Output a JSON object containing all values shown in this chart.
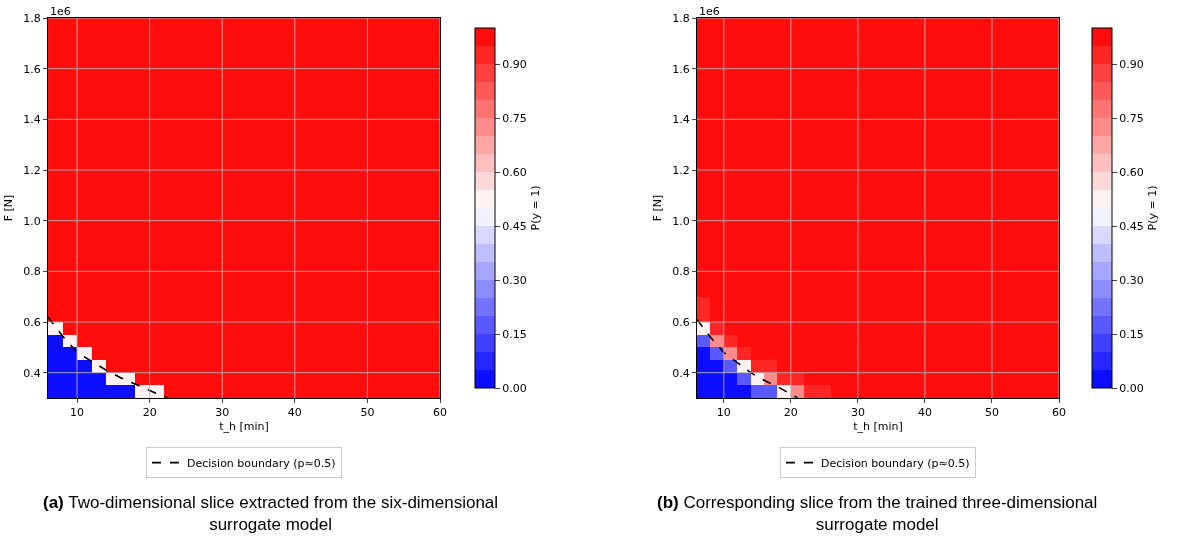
{
  "chart_data": [
    {
      "type": "heatmap",
      "title": "(a) Two-dimensional slice extracted from the six-dimensional surrogate model",
      "xlabel": "t_h [min]",
      "ylabel": "F [N]",
      "clabel": "P(y = 1)",
      "annotations": [
        "1e6"
      ],
      "x": [
        7,
        9,
        11,
        13,
        15,
        17,
        19,
        21,
        23,
        25,
        27,
        29,
        31,
        33,
        35,
        37,
        39,
        41,
        43,
        45,
        47,
        49,
        51,
        53,
        55,
        57,
        59
      ],
      "cells": [
        [
          1,
          1,
          1,
          1,
          1,
          1,
          1,
          1,
          1,
          1,
          1,
          1,
          1,
          1,
          1,
          1,
          1,
          1,
          1,
          1,
          1,
          1,
          1,
          1,
          1,
          1,
          1
        ],
        [
          1,
          1,
          1,
          1,
          1,
          1,
          1,
          1,
          1,
          1,
          1,
          1,
          1,
          1,
          1,
          1,
          1,
          1,
          1,
          1,
          1,
          1,
          1,
          1,
          1,
          1,
          1
        ],
        [
          1,
          1,
          1,
          1,
          1,
          1,
          1,
          1,
          1,
          1,
          1,
          1,
          1,
          1,
          1,
          1,
          1,
          1,
          1,
          1,
          1,
          1,
          1,
          1,
          1,
          1,
          1
        ],
        [
          1,
          1,
          1,
          1,
          1,
          1,
          1,
          1,
          1,
          1,
          1,
          1,
          1,
          1,
          1,
          1,
          1,
          1,
          1,
          1,
          1,
          1,
          1,
          1,
          1,
          1,
          1
        ],
        [
          1,
          1,
          1,
          1,
          1,
          1,
          1,
          1,
          1,
          1,
          1,
          1,
          1,
          1,
          1,
          1,
          1,
          1,
          1,
          1,
          1,
          1,
          1,
          1,
          1,
          1,
          1
        ],
        [
          1,
          1,
          1,
          1,
          1,
          1,
          1,
          1,
          1,
          1,
          1,
          1,
          1,
          1,
          1,
          1,
          1,
          1,
          1,
          1,
          1,
          1,
          1,
          1,
          1,
          1,
          1
        ],
        [
          1,
          1,
          1,
          1,
          1,
          1,
          1,
          1,
          1,
          1,
          1,
          1,
          1,
          1,
          1,
          1,
          1,
          1,
          1,
          1,
          1,
          1,
          1,
          1,
          1,
          1,
          1
        ],
        [
          1,
          1,
          1,
          1,
          1,
          1,
          1,
          1,
          1,
          1,
          1,
          1,
          1,
          1,
          1,
          1,
          1,
          1,
          1,
          1,
          1,
          1,
          1,
          1,
          1,
          1,
          1
        ],
        [
          1,
          1,
          1,
          1,
          1,
          1,
          1,
          1,
          1,
          1,
          1,
          1,
          1,
          1,
          1,
          1,
          1,
          1,
          1,
          1,
          1,
          1,
          1,
          1,
          1,
          1,
          1
        ],
        [
          1,
          1,
          1,
          1,
          1,
          1,
          1,
          1,
          1,
          1,
          1,
          1,
          1,
          1,
          1,
          1,
          1,
          1,
          1,
          1,
          1,
          1,
          1,
          1,
          1,
          1,
          1
        ],
        [
          1,
          1,
          1,
          1,
          1,
          1,
          1,
          1,
          1,
          1,
          1,
          1,
          1,
          1,
          1,
          1,
          1,
          1,
          1,
          1,
          1,
          1,
          1,
          1,
          1,
          1,
          1
        ],
        [
          1,
          1,
          1,
          1,
          1,
          1,
          1,
          1,
          1,
          1,
          1,
          1,
          1,
          1,
          1,
          1,
          1,
          1,
          1,
          1,
          1,
          1,
          1,
          1,
          1,
          1,
          1
        ],
        [
          1,
          1,
          1,
          1,
          1,
          1,
          1,
          1,
          1,
          1,
          1,
          1,
          1,
          1,
          1,
          1,
          1,
          1,
          1,
          1,
          1,
          1,
          1,
          1,
          1,
          1,
          1
        ],
        [
          1,
          1,
          1,
          1,
          1,
          1,
          1,
          1,
          1,
          1,
          1,
          1,
          1,
          1,
          1,
          1,
          1,
          1,
          1,
          1,
          1,
          1,
          1,
          1,
          1,
          1,
          1
        ],
        [
          1,
          1,
          1,
          1,
          1,
          1,
          1,
          1,
          1,
          1,
          1,
          1,
          1,
          1,
          1,
          1,
          1,
          1,
          1,
          1,
          1,
          1,
          1,
          1,
          1,
          1,
          1
        ],
        [
          1,
          1,
          1,
          1,
          1,
          1,
          1,
          1,
          1,
          1,
          1,
          1,
          1,
          1,
          1,
          1,
          1,
          1,
          1,
          1,
          1,
          1,
          1,
          1,
          1,
          1,
          1
        ],
        [
          1,
          1,
          1,
          1,
          1,
          1,
          1,
          1,
          1,
          1,
          1,
          1,
          1,
          1,
          1,
          1,
          1,
          1,
          1,
          1,
          1,
          1,
          1,
          1,
          1,
          1,
          1
        ],
        [
          1,
          1,
          1,
          1,
          1,
          1,
          1,
          1,
          1,
          1,
          1,
          1,
          1,
          1,
          1,
          1,
          1,
          1,
          1,
          1,
          1,
          1,
          1,
          1,
          1,
          1,
          1
        ],
        [
          1,
          1,
          1,
          1,
          1,
          1,
          1,
          1,
          1,
          1,
          1,
          1,
          1,
          1,
          1,
          1,
          1,
          1,
          1,
          1,
          1,
          1,
          1,
          1,
          1,
          1,
          1
        ],
        [
          1,
          1,
          1,
          1,
          1,
          1,
          1,
          1,
          1,
          1,
          1,
          1,
          1,
          1,
          1,
          1,
          1,
          1,
          1,
          1,
          1,
          1,
          1,
          1,
          1,
          1,
          1
        ],
        [
          1,
          1,
          1,
          1,
          1,
          1,
          1,
          1,
          1,
          1,
          1,
          1,
          1,
          1,
          1,
          1,
          1,
          1,
          1,
          1,
          1,
          1,
          1,
          1,
          1,
          1,
          1
        ],
        [
          1,
          1,
          1,
          1,
          1,
          1,
          1,
          1,
          1,
          1,
          1,
          1,
          1,
          1,
          1,
          1,
          1,
          1,
          1,
          1,
          1,
          1,
          1,
          1,
          1,
          1,
          1
        ],
        [
          1,
          1,
          1,
          1,
          1,
          1,
          1,
          1,
          1,
          1,
          1,
          1,
          1,
          1,
          1,
          1,
          1,
          1,
          1,
          1,
          1,
          1,
          1,
          1,
          1,
          1,
          1
        ],
        [
          1,
          1,
          1,
          1,
          1,
          1,
          1,
          1,
          1,
          1,
          1,
          1,
          1,
          1,
          1,
          1,
          1,
          1,
          1,
          1,
          1,
          1,
          1,
          1,
          1,
          1,
          1
        ],
        [
          0.5,
          1,
          1,
          1,
          1,
          1,
          1,
          1,
          1,
          1,
          1,
          1,
          1,
          1,
          1,
          1,
          1,
          1,
          1,
          1,
          1,
          1,
          1,
          1,
          1,
          1,
          1
        ],
        [
          0,
          0.5,
          1,
          1,
          1,
          1,
          1,
          1,
          1,
          1,
          1,
          1,
          1,
          1,
          1,
          1,
          1,
          1,
          1,
          1,
          1,
          1,
          1,
          1,
          1,
          1,
          1
        ],
        [
          0,
          0,
          0.5,
          1,
          1,
          1,
          1,
          1,
          1,
          1,
          1,
          1,
          1,
          1,
          1,
          1,
          1,
          1,
          1,
          1,
          1,
          1,
          1,
          1,
          1,
          1,
          1
        ],
        [
          0,
          0,
          0,
          0.5,
          1,
          1,
          1,
          1,
          1,
          1,
          1,
          1,
          1,
          1,
          1,
          1,
          1,
          1,
          1,
          1,
          1,
          1,
          1,
          1,
          1,
          1,
          1
        ],
        [
          0,
          0,
          0,
          0,
          0.5,
          0.5,
          1,
          1,
          1,
          1,
          1,
          1,
          1,
          1,
          1,
          1,
          1,
          1,
          1,
          1,
          1,
          1,
          1,
          1,
          1,
          1,
          1
        ],
        [
          0,
          0,
          0,
          0,
          0,
          0,
          0.5,
          0.5,
          1,
          1,
          1,
          1,
          1,
          1,
          1,
          1,
          1,
          1,
          1,
          1,
          1,
          1,
          1,
          1,
          1,
          1,
          1
        ]
      ],
      "clim": [
        0,
        1
      ],
      "cticks": [
        {
          "value": 0,
          "label": "0.00"
        },
        {
          "value": 0.15,
          "label": "0.15"
        },
        {
          "value": 0.3,
          "label": "0.30"
        },
        {
          "value": 0.45,
          "label": "0.45"
        },
        {
          "value": 0.6,
          "label": "0.60"
        },
        {
          "value": 0.75,
          "label": "0.75"
        },
        {
          "value": 0.9,
          "label": "0.90"
        }
      ],
      "series": [
        {
          "type": "line",
          "name": "Decision boundary (p≈0.5)",
          "color": "#000000",
          "line_style": "dashed",
          "x": [
            6,
            8,
            10,
            12,
            14,
            16,
            18,
            20,
            22,
            22.5
          ],
          "values": [
            0.62,
            0.545,
            0.48,
            0.445,
            0.41,
            0.38,
            0.355,
            0.33,
            0.305,
            0.3
          ]
        }
      ],
      "xlim": [
        6,
        60
      ],
      "xticks": [
        10,
        20,
        30,
        40,
        50,
        60
      ],
      "ylim": [
        0.3,
        1.8
      ],
      "yticks": [
        0.4,
        0.6,
        0.8,
        {
          "value": 1,
          "label": "1.0"
        },
        1.2,
        1.4,
        1.6,
        1.8
      ],
      "grid": true,
      "legend": "bottom"
    },
    {
      "type": "heatmap",
      "title": "(b) Corresponding slice from the trained three-dimensional surrogate model",
      "xlabel": "t_h [min]",
      "ylabel": "F [N]",
      "clabel": "P(y = 1)",
      "annotations": [
        "1e6"
      ],
      "x": [
        7,
        9,
        11,
        13,
        15,
        17,
        19,
        21,
        23,
        25,
        27,
        29,
        31,
        33,
        35,
        37,
        39,
        41,
        43,
        45,
        47,
        49,
        51,
        53,
        55,
        57,
        59
      ],
      "cells": [
        [
          1,
          1,
          1,
          1,
          1,
          1,
          1,
          1,
          1,
          1,
          1,
          1,
          1,
          1,
          1,
          1,
          1,
          1,
          1,
          1,
          1,
          1,
          1,
          1,
          1,
          1,
          1
        ],
        [
          1,
          1,
          1,
          1,
          1,
          1,
          1,
          1,
          1,
          1,
          1,
          1,
          1,
          1,
          1,
          1,
          1,
          1,
          1,
          1,
          1,
          1,
          1,
          1,
          1,
          1,
          1
        ],
        [
          1,
          1,
          1,
          1,
          1,
          1,
          1,
          1,
          1,
          1,
          1,
          1,
          1,
          1,
          1,
          1,
          1,
          1,
          1,
          1,
          1,
          1,
          1,
          1,
          1,
          1,
          1
        ],
        [
          1,
          1,
          1,
          1,
          1,
          1,
          1,
          1,
          1,
          1,
          1,
          1,
          1,
          1,
          1,
          1,
          1,
          1,
          1,
          1,
          1,
          1,
          1,
          1,
          1,
          1,
          1
        ],
        [
          1,
          1,
          1,
          1,
          1,
          1,
          1,
          1,
          1,
          1,
          1,
          1,
          1,
          1,
          1,
          1,
          1,
          1,
          1,
          1,
          1,
          1,
          1,
          1,
          1,
          1,
          1
        ],
        [
          1,
          1,
          1,
          1,
          1,
          1,
          1,
          1,
          1,
          1,
          1,
          1,
          1,
          1,
          1,
          1,
          1,
          1,
          1,
          1,
          1,
          1,
          1,
          1,
          1,
          1,
          1
        ],
        [
          1,
          1,
          1,
          1,
          1,
          1,
          1,
          1,
          1,
          1,
          1,
          1,
          1,
          1,
          1,
          1,
          1,
          1,
          1,
          1,
          1,
          1,
          1,
          1,
          1,
          1,
          1
        ],
        [
          1,
          1,
          1,
          1,
          1,
          1,
          1,
          1,
          1,
          1,
          1,
          1,
          1,
          1,
          1,
          1,
          1,
          1,
          1,
          1,
          1,
          1,
          1,
          1,
          1,
          1,
          1
        ],
        [
          1,
          1,
          1,
          1,
          1,
          1,
          1,
          1,
          1,
          1,
          1,
          1,
          1,
          1,
          1,
          1,
          1,
          1,
          1,
          1,
          1,
          1,
          1,
          1,
          1,
          1,
          1
        ],
        [
          1,
          1,
          1,
          1,
          1,
          1,
          1,
          1,
          1,
          1,
          1,
          1,
          1,
          1,
          1,
          1,
          1,
          1,
          1,
          1,
          1,
          1,
          1,
          1,
          1,
          1,
          1
        ],
        [
          1,
          1,
          1,
          1,
          1,
          1,
          1,
          1,
          1,
          1,
          1,
          1,
          1,
          1,
          1,
          1,
          1,
          1,
          1,
          1,
          1,
          1,
          1,
          1,
          1,
          1,
          1
        ],
        [
          1,
          1,
          1,
          1,
          1,
          1,
          1,
          1,
          1,
          1,
          1,
          1,
          1,
          1,
          1,
          1,
          1,
          1,
          1,
          1,
          1,
          1,
          1,
          1,
          1,
          1,
          1
        ],
        [
          1,
          1,
          1,
          1,
          1,
          1,
          1,
          1,
          1,
          1,
          1,
          1,
          1,
          1,
          1,
          1,
          1,
          1,
          1,
          1,
          1,
          1,
          1,
          1,
          1,
          1,
          1
        ],
        [
          1,
          1,
          1,
          1,
          1,
          1,
          1,
          1,
          1,
          1,
          1,
          1,
          1,
          1,
          1,
          1,
          1,
          1,
          1,
          1,
          1,
          1,
          1,
          1,
          1,
          1,
          1
        ],
        [
          1,
          1,
          1,
          1,
          1,
          1,
          1,
          1,
          1,
          1,
          1,
          1,
          1,
          1,
          1,
          1,
          1,
          1,
          1,
          1,
          1,
          1,
          1,
          1,
          1,
          1,
          1
        ],
        [
          1,
          1,
          1,
          1,
          1,
          1,
          1,
          1,
          1,
          1,
          1,
          1,
          1,
          1,
          1,
          1,
          1,
          1,
          1,
          1,
          1,
          1,
          1,
          1,
          1,
          1,
          1
        ],
        [
          1,
          1,
          1,
          1,
          1,
          1,
          1,
          1,
          1,
          1,
          1,
          1,
          1,
          1,
          1,
          1,
          1,
          1,
          1,
          1,
          1,
          1,
          1,
          1,
          1,
          1,
          1
        ],
        [
          1,
          1,
          1,
          1,
          1,
          1,
          1,
          1,
          1,
          1,
          1,
          1,
          1,
          1,
          1,
          1,
          1,
          1,
          1,
          1,
          1,
          1,
          1,
          1,
          1,
          1,
          1
        ],
        [
          1,
          1,
          1,
          1,
          1,
          1,
          1,
          1,
          1,
          1,
          1,
          1,
          1,
          1,
          1,
          1,
          1,
          1,
          1,
          1,
          1,
          1,
          1,
          1,
          1,
          1,
          1
        ],
        [
          1,
          1,
          1,
          1,
          1,
          1,
          1,
          1,
          1,
          1,
          1,
          1,
          1,
          1,
          1,
          1,
          1,
          1,
          1,
          1,
          1,
          1,
          1,
          1,
          1,
          1,
          1
        ],
        [
          1,
          1,
          1,
          1,
          1,
          1,
          1,
          1,
          1,
          1,
          1,
          1,
          1,
          1,
          1,
          1,
          1,
          1,
          1,
          1,
          1,
          1,
          1,
          1,
          1,
          1,
          1
        ],
        [
          0.95,
          1,
          1,
          1,
          1,
          1,
          1,
          1,
          1,
          1,
          1,
          1,
          1,
          1,
          1,
          1,
          1,
          1,
          1,
          1,
          1,
          1,
          1,
          1,
          1,
          1,
          1
        ],
        [
          0.9,
          1,
          1,
          1,
          1,
          1,
          1,
          1,
          1,
          1,
          1,
          1,
          1,
          1,
          1,
          1,
          1,
          1,
          1,
          1,
          1,
          1,
          1,
          1,
          1,
          1,
          1
        ],
        [
          0.9,
          1,
          1,
          1,
          1,
          1,
          1,
          1,
          1,
          1,
          1,
          1,
          1,
          1,
          1,
          1,
          1,
          1,
          1,
          1,
          1,
          1,
          1,
          1,
          1,
          1,
          1
        ],
        [
          0.5,
          0.9,
          1,
          1,
          1,
          1,
          1,
          1,
          1,
          1,
          1,
          1,
          1,
          1,
          1,
          1,
          1,
          1,
          1,
          1,
          1,
          1,
          1,
          1,
          1,
          1,
          1
        ],
        [
          0.15,
          0.7,
          0.9,
          1,
          1,
          1,
          1,
          1,
          1,
          1,
          1,
          1,
          1,
          1,
          1,
          1,
          1,
          1,
          1,
          1,
          1,
          1,
          1,
          1,
          1,
          1,
          1
        ],
        [
          0,
          0.15,
          0.7,
          0.9,
          1,
          1,
          1,
          1,
          1,
          1,
          1,
          1,
          1,
          1,
          1,
          1,
          1,
          1,
          1,
          1,
          1,
          1,
          1,
          1,
          1,
          1,
          1
        ],
        [
          0,
          0,
          0.15,
          0.5,
          0.9,
          0.9,
          1,
          1,
          1,
          1,
          1,
          1,
          1,
          1,
          1,
          1,
          1,
          1,
          1,
          1,
          1,
          1,
          1,
          1,
          1,
          1,
          1
        ],
        [
          0,
          0,
          0,
          0.15,
          0.5,
          0.7,
          0.9,
          0.9,
          1,
          1,
          1,
          1,
          1,
          1,
          1,
          1,
          1,
          1,
          1,
          1,
          1,
          1,
          1,
          1,
          1,
          1,
          1
        ],
        [
          0,
          0,
          0,
          0,
          0.15,
          0.15,
          0.5,
          0.7,
          0.9,
          0.9,
          1,
          1,
          1,
          1,
          1,
          1,
          1,
          1,
          1,
          1,
          1,
          1,
          1,
          1,
          1,
          1,
          1
        ]
      ],
      "clim": [
        0,
        1
      ],
      "cticks": [
        {
          "value": 0,
          "label": "0.00"
        },
        {
          "value": 0.15,
          "label": "0.15"
        },
        {
          "value": 0.3,
          "label": "0.30"
        },
        {
          "value": 0.45,
          "label": "0.45"
        },
        {
          "value": 0.6,
          "label": "0.60"
        },
        {
          "value": 0.75,
          "label": "0.75"
        },
        {
          "value": 0.9,
          "label": "0.90"
        }
      ],
      "series": [
        {
          "type": "line",
          "name": "Decision boundary (p≈0.5)",
          "color": "#000000",
          "line_style": "dashed",
          "x": [
            6,
            8,
            10,
            12,
            14,
            16,
            18,
            20,
            21
          ],
          "values": [
            0.61,
            0.54,
            0.48,
            0.44,
            0.4,
            0.37,
            0.345,
            0.315,
            0.3
          ]
        }
      ],
      "xlim": [
        6,
        60
      ],
      "xticks": [
        10,
        20,
        30,
        40,
        50,
        60
      ],
      "ylim": [
        0.3,
        1.8
      ],
      "yticks": [
        0.4,
        0.6,
        0.8,
        {
          "value": 1,
          "label": "1.0"
        },
        1.2,
        1.4,
        1.6,
        1.8
      ],
      "grid": true,
      "legend": "bottom"
    }
  ]
}
